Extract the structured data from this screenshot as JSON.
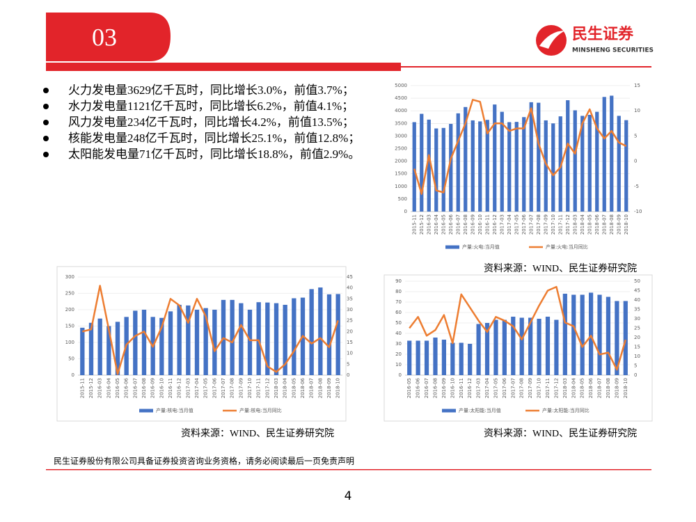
{
  "header": {
    "section": "03",
    "logo_cn": "民生证券",
    "logo_en": "MINSHENG SECURITIES"
  },
  "bullets": [
    "火力发电量3629亿千瓦时，同比增长3.0%，前值3.7%；",
    "水力发电量1121亿千瓦时，同比增长6.2%，前值4.1%；",
    "风力发电量234亿千瓦时，同比增长4.2%，前值13.5%；",
    "核能发电量248亿千瓦时，同比增长25.1%，前值12.8%；",
    "太阳能发电量71亿千瓦时，同比增长18.8%，前值2.9%。"
  ],
  "chart_data": [
    {
      "type": "combo",
      "categories": [
        "2015-11",
        "2015-12",
        "2016-03",
        "2016-04",
        "2016-05",
        "2016-06",
        "2016-07",
        "2016-08",
        "2016-09",
        "2016-10",
        "2016-11",
        "2016-12",
        "2017-03",
        "2017-04",
        "2017-05",
        "2017-06",
        "2017-07",
        "2017-08",
        "2017-09",
        "2017-10",
        "2017-11",
        "2017-12",
        "2018-03",
        "2018-04",
        "2018-05",
        "2018-06",
        "2018-07",
        "2018-08",
        "2018-09",
        "2018-10"
      ],
      "series": [
        {
          "name": "产量:火电:当月值",
          "kind": "bar",
          "color": "#4472c4",
          "values": [
            3550,
            3880,
            3650,
            3300,
            3320,
            3480,
            3900,
            4150,
            3620,
            3580,
            3640,
            4250,
            3960,
            3550,
            3560,
            3750,
            4340,
            4320,
            3620,
            3500,
            3780,
            4420,
            4020,
            3800,
            3840,
            3960,
            4550,
            4600,
            3800,
            3629
          ]
        },
        {
          "name": "产量:火电:当月同比",
          "kind": "line",
          "axis": "y2",
          "color": "#ed7d31",
          "values": [
            -1.5,
            -6.5,
            1.2,
            -5.8,
            -6.2,
            0.5,
            4,
            7.5,
            12.2,
            11.8,
            5.5,
            7.5,
            7.5,
            6,
            6.5,
            6.5,
            10.5,
            3.5,
            -0.5,
            -2.8,
            -1.2,
            3.5,
            1.5,
            7.5,
            10.3,
            6.5,
            4.5,
            6.0,
            3.7,
            3.0
          ]
        }
      ],
      "ylim": [
        0,
        5000
      ],
      "yticks": [
        0,
        500,
        1000,
        1500,
        2000,
        2500,
        3000,
        3500,
        4000,
        4500,
        5000
      ],
      "y2lim": [
        -10,
        15
      ],
      "y2ticks": [
        -10,
        -5,
        0,
        5,
        10,
        15
      ]
    },
    {
      "type": "combo",
      "categories": [
        "2015-11",
        "2015-12",
        "2016-03",
        "2016-04",
        "2016-05",
        "2016-06",
        "2016-07",
        "2016-08",
        "2016-09",
        "2016-10",
        "2016-11",
        "2016-12",
        "2017-03",
        "2017-04",
        "2017-05",
        "2017-06",
        "2017-07",
        "2017-08",
        "2017-09",
        "2017-10",
        "2017-11",
        "2017-12",
        "2018-03",
        "2018-04",
        "2018-05",
        "2018-06",
        "2018-07",
        "2018-08",
        "2018-09",
        "2018-10"
      ],
      "series": [
        {
          "name": "产量:核电:当月值",
          "kind": "bar",
          "color": "#4472c4",
          "values": [
            145,
            160,
            173,
            150,
            163,
            178,
            197,
            200,
            178,
            175,
            195,
            215,
            213,
            200,
            205,
            200,
            230,
            230,
            220,
            200,
            223,
            222,
            220,
            215,
            235,
            237,
            263,
            268,
            247,
            248
          ]
        },
        {
          "name": "产量:核电:当月同比",
          "kind": "line",
          "axis": "y2",
          "color": "#ed7d31",
          "values": [
            20,
            21,
            41,
            21,
            0.5,
            14,
            18,
            20,
            13,
            22,
            35,
            32,
            24,
            35,
            27,
            11,
            17,
            15,
            23,
            16,
            16,
            4,
            1.5,
            5,
            11,
            18,
            14.5,
            17,
            12.8,
            25.1
          ]
        }
      ],
      "ylim": [
        0,
        300
      ],
      "yticks": [
        0,
        50,
        100,
        150,
        200,
        250,
        300
      ],
      "y2lim": [
        0,
        45
      ],
      "y2ticks": [
        0,
        5,
        10,
        15,
        20,
        25,
        30,
        35,
        40,
        45
      ]
    },
    {
      "type": "combo",
      "categories": [
        "2016-05",
        "2016-06",
        "2016-07",
        "2016-08",
        "2016-09",
        "2016-10",
        "2016-11",
        "2016-12",
        "2017-03",
        "2017-04",
        "2017-05",
        "2017-06",
        "2017-07",
        "2017-08",
        "2017-09",
        "2017-10",
        "2017-11",
        "2017-12",
        "2018-03",
        "2018-04",
        "2018-05",
        "2018-06",
        "2018-07",
        "2018-08",
        "2018-09",
        "2018-10"
      ],
      "series": [
        {
          "name": "产量:太阳能:当月值",
          "kind": "bar",
          "color": "#4472c4",
          "values": [
            33,
            33,
            33,
            36,
            34,
            31,
            31,
            30,
            49,
            50,
            53,
            53,
            56,
            55,
            55,
            54,
            56,
            53,
            78,
            77,
            77,
            79,
            77,
            75,
            71,
            71
          ]
        },
        {
          "name": "产量:太阳能:当月同比",
          "kind": "line",
          "axis": "y2",
          "color": "#ed7d31",
          "values": [
            25,
            31,
            21,
            24,
            32,
            17,
            43,
            36,
            29,
            23,
            31,
            29,
            26,
            19,
            28,
            37,
            45,
            47,
            28,
            26,
            15,
            21,
            11,
            12,
            2.9,
            18.8
          ]
        }
      ],
      "ylim": [
        0,
        90
      ],
      "yticks": [
        0,
        10,
        20,
        30,
        40,
        50,
        60,
        70,
        80,
        90
      ],
      "y2lim": [
        0,
        50
      ],
      "y2ticks": [
        0,
        5,
        10,
        15,
        20,
        25,
        30,
        35,
        40,
        45,
        50
      ]
    }
  ],
  "sources": [
    "资料来源：WIND、民生证券研究院",
    "资料来源：WIND、民生证券研究院",
    "资料来源：WIND、民生证券研究院"
  ],
  "footer": "民生证券股份有限公司具备证券投资咨询业务资格，请务必阅读最后一页免责声明",
  "page_number": "4"
}
